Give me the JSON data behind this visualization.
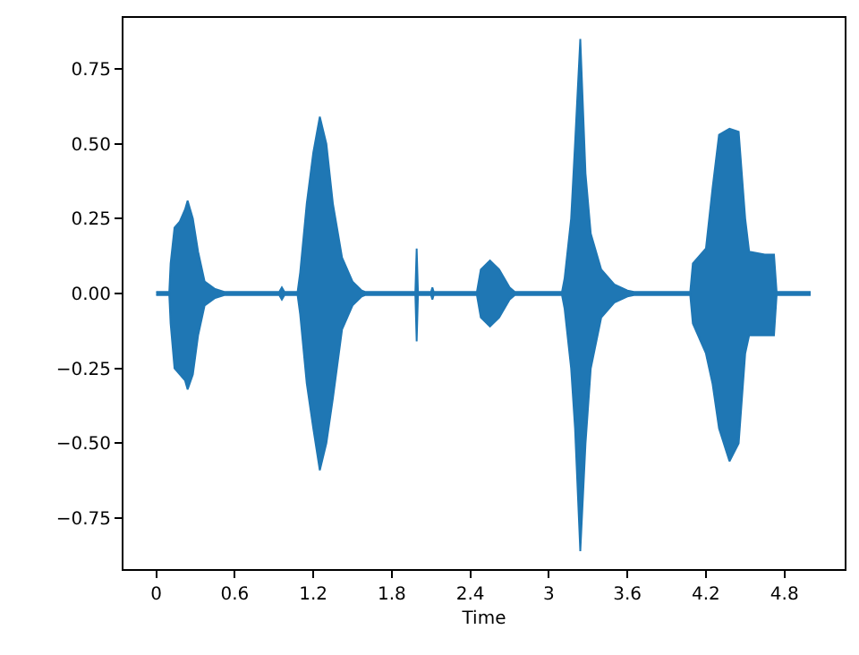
{
  "chart_data": {
    "type": "area",
    "xlabel": "Time",
    "x": [
      0,
      0.1,
      0.11,
      0.14,
      0.18,
      0.22,
      0.24,
      0.28,
      0.32,
      0.37,
      0.45,
      0.52,
      0.94,
      0.96,
      0.98,
      1.08,
      1.1,
      1.15,
      1.2,
      1.25,
      1.3,
      1.35,
      1.42,
      1.5,
      1.57,
      1.6,
      1.98,
      1.99,
      2.0,
      2.1,
      2.11,
      2.12,
      2.45,
      2.48,
      2.55,
      2.62,
      2.7,
      2.74,
      3.1,
      3.12,
      3.17,
      3.2,
      3.24,
      3.28,
      3.32,
      3.4,
      3.5,
      3.6,
      3.65,
      4.08,
      4.1,
      4.2,
      4.25,
      4.3,
      4.38,
      4.45,
      4.5,
      4.53,
      4.65,
      4.72,
      4.74,
      5.0
    ],
    "series": [
      {
        "color": "#1f77b4",
        "values": [
          0.005,
          0.005,
          0.1,
          0.22,
          0.24,
          0.28,
          0.31,
          0.25,
          0.14,
          0.04,
          0.015,
          0.005,
          0.005,
          0.02,
          0.005,
          0.005,
          0.07,
          0.3,
          0.47,
          0.59,
          0.5,
          0.3,
          0.12,
          0.04,
          0.01,
          0.005,
          0.005,
          0.15,
          0.005,
          0.005,
          0.02,
          0.005,
          0.005,
          0.08,
          0.11,
          0.08,
          0.02,
          0.005,
          0.005,
          0.05,
          0.25,
          0.5,
          0.85,
          0.4,
          0.2,
          0.08,
          0.03,
          0.01,
          0.005,
          0.005,
          0.1,
          0.15,
          0.35,
          0.53,
          0.55,
          0.54,
          0.25,
          0.14,
          0.13,
          0.13,
          0.005,
          0.005
        ]
      },
      {
        "color": "#1f77b4",
        "values": [
          -0.005,
          -0.005,
          -0.1,
          -0.25,
          -0.27,
          -0.29,
          -0.32,
          -0.27,
          -0.14,
          -0.04,
          -0.015,
          -0.005,
          -0.005,
          -0.02,
          -0.005,
          -0.005,
          -0.07,
          -0.3,
          -0.45,
          -0.59,
          -0.5,
          -0.35,
          -0.12,
          -0.04,
          -0.01,
          -0.005,
          -0.005,
          -0.16,
          -0.005,
          -0.005,
          -0.02,
          -0.005,
          -0.005,
          -0.08,
          -0.11,
          -0.08,
          -0.02,
          -0.005,
          -0.005,
          -0.05,
          -0.25,
          -0.45,
          -0.86,
          -0.5,
          -0.25,
          -0.08,
          -0.03,
          -0.01,
          -0.005,
          -0.005,
          -0.1,
          -0.2,
          -0.3,
          -0.45,
          -0.56,
          -0.5,
          -0.2,
          -0.14,
          -0.14,
          -0.14,
          -0.005,
          -0.005
        ]
      }
    ],
    "xlim": [
      -0.25,
      5.26
    ],
    "xticks": [
      0,
      0.6,
      1.2,
      1.8,
      2.4,
      3,
      3.6,
      4.2,
      4.8
    ],
    "ylim": [
      -0.92,
      0.92
    ],
    "yticks": [
      {
        "value": -0.75,
        "label": "−0.75"
      },
      {
        "value": -0.5,
        "label": "−0.50"
      },
      {
        "value": -0.25,
        "label": "−0.25"
      },
      {
        "value": 0,
        "label": "0.00"
      },
      {
        "value": 0.25,
        "label": "0.25"
      },
      {
        "value": 0.5,
        "label": "0.50"
      },
      {
        "value": 0.75,
        "label": "0.75"
      }
    ],
    "tick_labels": true
  }
}
